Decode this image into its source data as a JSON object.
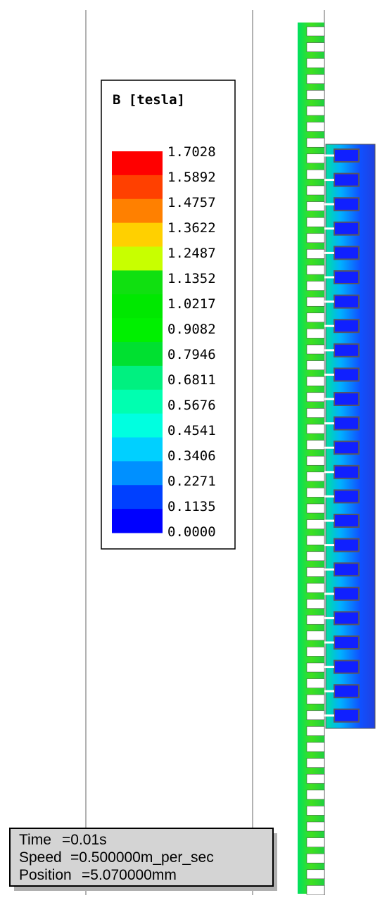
{
  "legend": {
    "title": "B [tesla]",
    "labels": [
      "1.7028",
      "1.5892",
      "1.4757",
      "1.3622",
      "1.2487",
      "1.1352",
      "1.0217",
      "0.9082",
      "0.7946",
      "0.6811",
      "0.5676",
      "0.4541",
      "0.3406",
      "0.2271",
      "0.1135",
      "0.0000"
    ],
    "colors": [
      "#ff0000",
      "#ff4000",
      "#ff8000",
      "#ffd000",
      "#c8ff00",
      "#10e010",
      "#00e800",
      "#00f000",
      "#00e030",
      "#00f080",
      "#00ffb0",
      "#00ffe0",
      "#00d0ff",
      "#0090ff",
      "#0040ff",
      "#0000ff"
    ]
  },
  "info": {
    "rows": [
      [
        "Time",
        "=0.01s"
      ],
      [
        "Speed",
        "=0.500000m_per_sec"
      ],
      [
        "Position",
        "=5.070000mm"
      ]
    ]
  }
}
